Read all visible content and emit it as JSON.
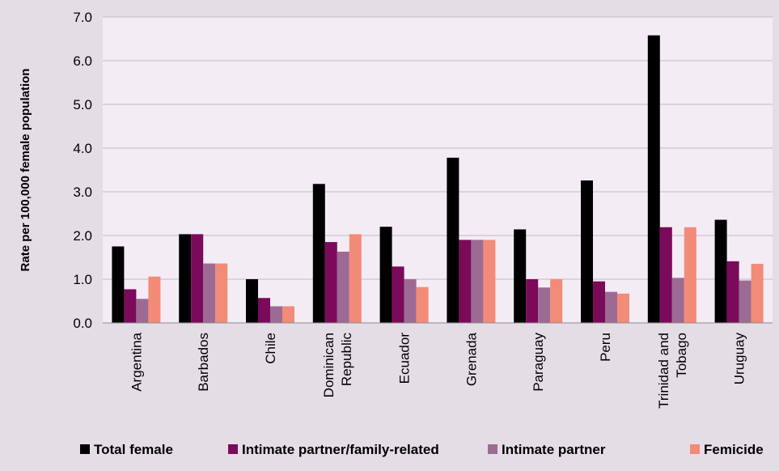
{
  "chart_data": {
    "type": "bar",
    "title": "",
    "xlabel": "",
    "ylabel": "Rate per 100,000 female population",
    "ylim": [
      0,
      7
    ],
    "yticks": [
      "0.0",
      "1.0",
      "2.0",
      "3.0",
      "4.0",
      "5.0",
      "6.0",
      "7.0"
    ],
    "grid": true,
    "legend_position": "bottom",
    "categories": [
      [
        "Argentina"
      ],
      [
        "Barbados"
      ],
      [
        "Chile"
      ],
      [
        "Dominican",
        "Republic"
      ],
      [
        "Ecuador"
      ],
      [
        "Grenada"
      ],
      [
        "Paraguay"
      ],
      [
        "Peru"
      ],
      [
        "Trinidad and",
        "Tobago"
      ],
      [
        "Uruguay"
      ]
    ],
    "series": [
      {
        "name": "Total female",
        "color": "#000000",
        "values": [
          1.75,
          2.03,
          1.0,
          3.18,
          2.2,
          3.78,
          2.14,
          3.26,
          6.58,
          2.36
        ]
      },
      {
        "name": "Intimate partner/family-related",
        "color": "#7b0a5a",
        "values": [
          0.77,
          2.03,
          0.57,
          1.85,
          1.29,
          1.9,
          1.0,
          0.95,
          2.19,
          1.41
        ]
      },
      {
        "name": "Intimate partner",
        "color": "#9c6b93",
        "values": [
          0.55,
          1.36,
          0.38,
          1.63,
          1.0,
          1.9,
          0.81,
          0.71,
          1.03,
          0.97
        ]
      },
      {
        "name": "Femicide",
        "color": "#f28b78",
        "values": [
          1.06,
          1.36,
          0.38,
          2.03,
          0.82,
          1.9,
          1.0,
          0.67,
          2.19,
          1.35
        ]
      }
    ]
  }
}
